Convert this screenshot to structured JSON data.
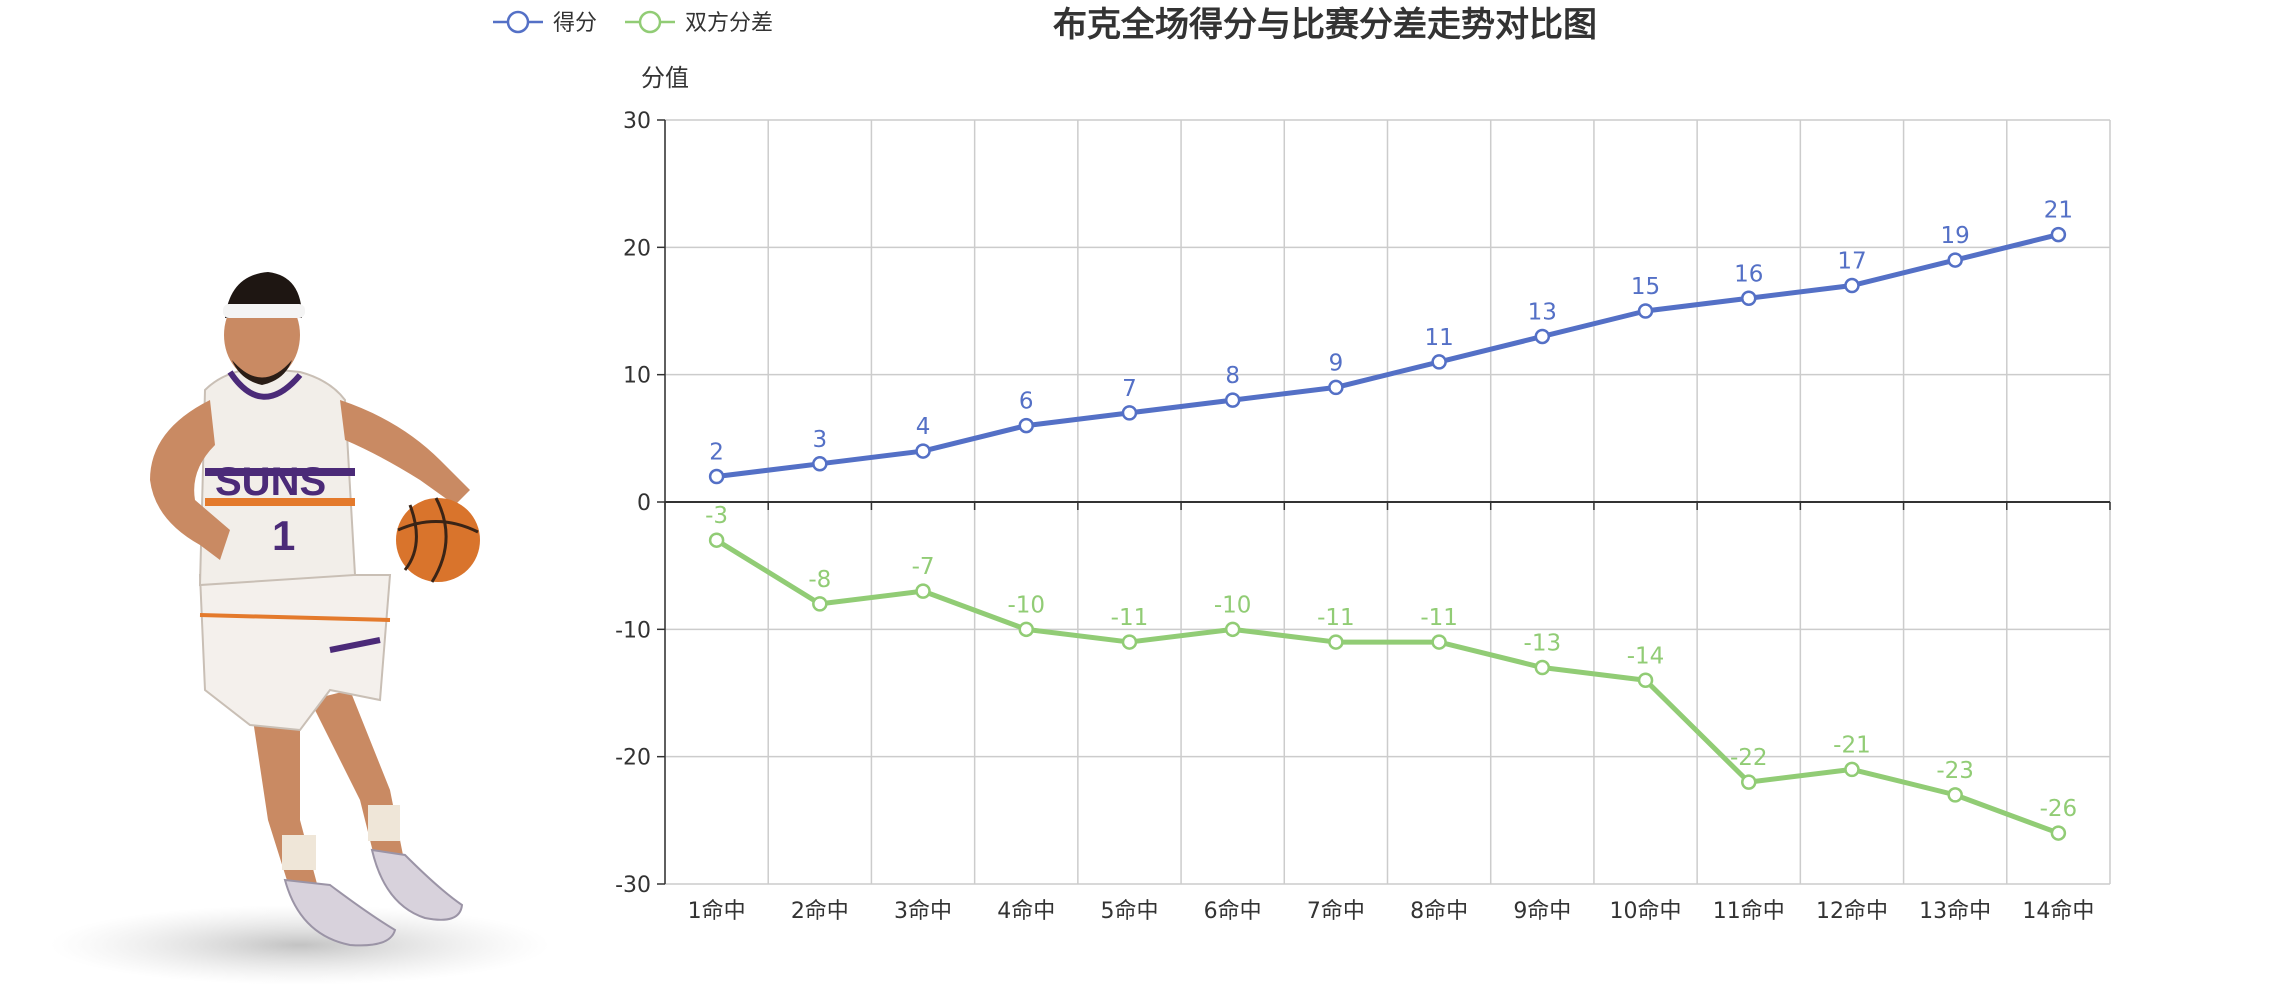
{
  "chart_data": {
    "type": "line",
    "title": "布克全场得分与比赛分差走势对比图",
    "ylabel": "分值",
    "xlabel": "",
    "ylim": [
      -30,
      30
    ],
    "yticks": [
      30,
      20,
      10,
      0,
      -10,
      -20,
      -30
    ],
    "categories": [
      "1命中",
      "2命中",
      "3命中",
      "4命中",
      "5命中",
      "6命中",
      "7命中",
      "8命中",
      "9命中",
      "10命中",
      "11命中",
      "12命中",
      "13命中",
      "14命中"
    ],
    "grid": true,
    "legend_position": "top-left",
    "series": [
      {
        "name": "得分",
        "color": "#5470c6",
        "values": [
          2,
          3,
          4,
          6,
          7,
          8,
          9,
          11,
          13,
          15,
          16,
          17,
          19,
          21
        ]
      },
      {
        "name": "双方分差",
        "color": "#91cc75",
        "values": [
          -3,
          -8,
          -7,
          -10,
          -11,
          -10,
          -11,
          -11,
          -13,
          -14,
          -22,
          -21,
          -23,
          -26
        ]
      }
    ]
  },
  "image": {
    "icon": "basketball-player-photo"
  }
}
